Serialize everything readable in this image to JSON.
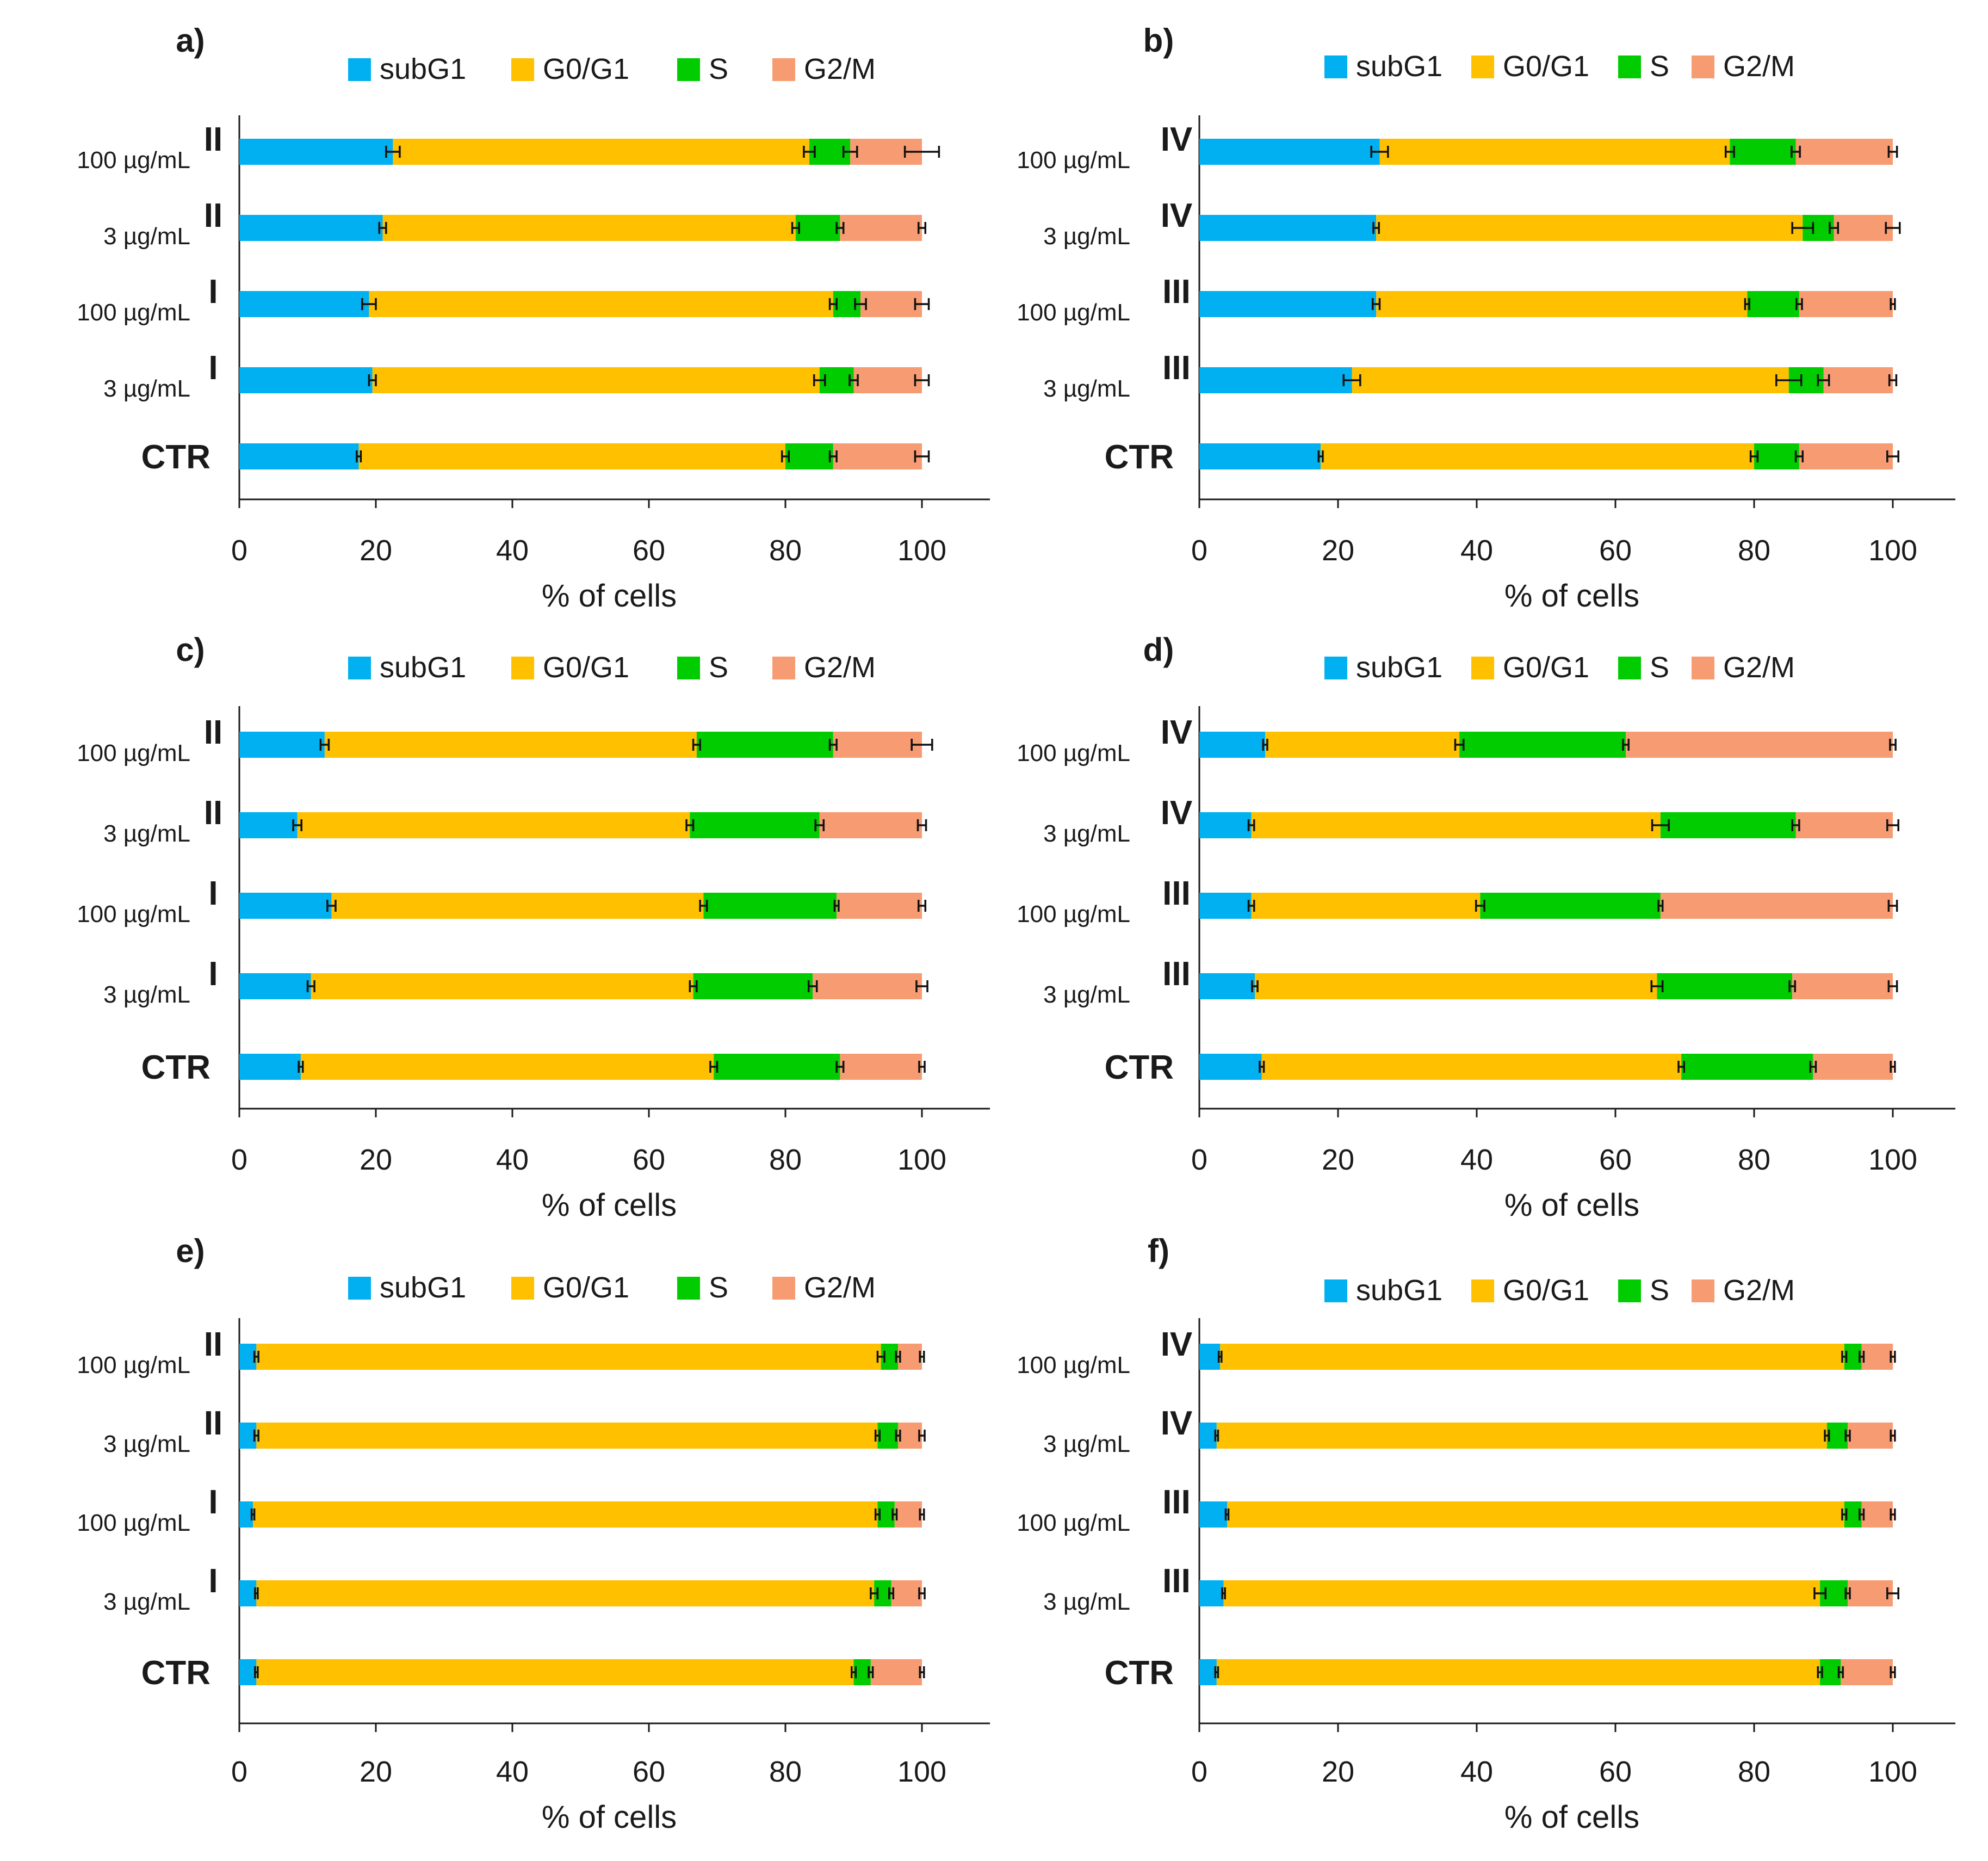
{
  "chart_data": [
    {
      "panel": "a)",
      "type": "bar",
      "orientation": "horizontal",
      "stacked": true,
      "legend": [
        "subG1",
        "G0/G1",
        "S",
        "G2/M"
      ],
      "rows": [
        {
          "conc": "100 µg/mL",
          "label": "II",
          "values": [
            22.5,
            61,
            6,
            10.5
          ],
          "errors": [
            1,
            0.8,
            1,
            2.5
          ]
        },
        {
          "conc": "3 µg/mL",
          "label": "II",
          "values": [
            21,
            60.5,
            6.5,
            12
          ],
          "errors": [
            0.5,
            0.5,
            0.5,
            0.5
          ]
        },
        {
          "conc": "100 µg/mL",
          "label": "I",
          "values": [
            19,
            68,
            4,
            9
          ],
          "errors": [
            1,
            0.5,
            0.8,
            1
          ]
        },
        {
          "conc": "3 µg/mL",
          "label": "I",
          "values": [
            19.5,
            65.5,
            5,
            10
          ],
          "errors": [
            0.5,
            0.8,
            0.6,
            1
          ]
        },
        {
          "conc": "",
          "label": "CTR",
          "values": [
            17.5,
            62.5,
            7,
            13
          ],
          "errors": [
            0.3,
            0.5,
            0.5,
            1
          ]
        }
      ],
      "xlim": [
        0,
        110
      ],
      "xticks": [
        "0",
        "20",
        "40",
        "60",
        "80",
        "100"
      ],
      "xlabel": "% of cells"
    },
    {
      "panel": "b)",
      "type": "bar",
      "orientation": "horizontal",
      "stacked": true,
      "legend": [
        "subG1",
        "G0/G1",
        "S",
        "G2/M"
      ],
      "rows": [
        {
          "conc": "100 µg/mL",
          "label": "IV",
          "values": [
            26,
            50.5,
            9.5,
            14
          ],
          "errors": [
            1.2,
            0.6,
            0.6,
            0.6
          ]
        },
        {
          "conc": "3 µg/mL",
          "label": "IV",
          "values": [
            25.5,
            61.5,
            4.5,
            8.5
          ],
          "errors": [
            0.4,
            1.5,
            0.6,
            1
          ]
        },
        {
          "conc": "100 µg/mL",
          "label": "III",
          "values": [
            25.5,
            53.5,
            7.5,
            13.5
          ],
          "errors": [
            0.5,
            0.3,
            0.4,
            0.3
          ]
        },
        {
          "conc": "3 µg/mL",
          "label": "III",
          "values": [
            22,
            63,
            5,
            10
          ],
          "errors": [
            1.2,
            1.8,
            0.8,
            0.5
          ]
        },
        {
          "conc": "",
          "label": "CTR",
          "values": [
            17.5,
            62.5,
            6.5,
            13.5
          ],
          "errors": [
            0.3,
            0.5,
            0.5,
            0.8
          ]
        }
      ],
      "xlim": [
        0,
        110
      ],
      "xticks": [
        "0",
        "20",
        "40",
        "60",
        "80",
        "100"
      ],
      "xlabel": "% of cells"
    },
    {
      "panel": "c)",
      "type": "bar",
      "orientation": "horizontal",
      "stacked": true,
      "legend": [
        "subG1",
        "G0/G1",
        "S",
        "G2/M"
      ],
      "rows": [
        {
          "conc": "100 µg/mL",
          "label": "II",
          "values": [
            12.5,
            54.5,
            20,
            13
          ],
          "errors": [
            0.6,
            0.5,
            0.5,
            1.5
          ]
        },
        {
          "conc": "3 µg/mL",
          "label": "II",
          "values": [
            8.5,
            57.5,
            19,
            15
          ],
          "errors": [
            0.6,
            0.5,
            0.6,
            0.6
          ]
        },
        {
          "conc": "100 µg/mL",
          "label": "I",
          "values": [
            13.5,
            54.5,
            19.5,
            12.5
          ],
          "errors": [
            0.6,
            0.5,
            0.3,
            0.5
          ]
        },
        {
          "conc": "3 µg/mL",
          "label": "I",
          "values": [
            10.5,
            56,
            17.5,
            16
          ],
          "errors": [
            0.5,
            0.5,
            0.6,
            0.8
          ]
        },
        {
          "conc": "",
          "label": "CTR",
          "values": [
            9,
            60.5,
            18.5,
            12
          ],
          "errors": [
            0.3,
            0.5,
            0.5,
            0.4
          ]
        }
      ],
      "xlim": [
        0,
        110
      ],
      "xticks": [
        "0",
        "20",
        "40",
        "60",
        "80",
        "100"
      ],
      "xlabel": "% of cells"
    },
    {
      "panel": "d)",
      "type": "bar",
      "orientation": "horizontal",
      "stacked": true,
      "legend": [
        "subG1",
        "G0/G1",
        "S",
        "G2/M"
      ],
      "rows": [
        {
          "conc": "100 µg/mL",
          "label": "IV",
          "values": [
            9.5,
            28,
            24,
            38.5
          ],
          "errors": [
            0.3,
            0.6,
            0.4,
            0.4
          ]
        },
        {
          "conc": "3 µg/mL",
          "label": "IV",
          "values": [
            7.5,
            59,
            19.5,
            14
          ],
          "errors": [
            0.4,
            1.2,
            0.5,
            0.8
          ]
        },
        {
          "conc": "100 µg/mL",
          "label": "III",
          "values": [
            7.5,
            33,
            26,
            33.5
          ],
          "errors": [
            0.4,
            0.6,
            0.3,
            0.6
          ]
        },
        {
          "conc": "3 µg/mL",
          "label": "III",
          "values": [
            8,
            58,
            19.5,
            14.5
          ],
          "errors": [
            0.4,
            0.8,
            0.4,
            0.6
          ]
        },
        {
          "conc": "",
          "label": "CTR",
          "values": [
            9,
            60.5,
            19,
            11.5
          ],
          "errors": [
            0.3,
            0.4,
            0.4,
            0.3
          ]
        }
      ],
      "xlim": [
        0,
        110
      ],
      "xticks": [
        "0",
        "20",
        "40",
        "60",
        "80",
        "100"
      ],
      "xlabel": "% of cells"
    },
    {
      "panel": "e)",
      "type": "bar",
      "orientation": "horizontal",
      "stacked": true,
      "legend": [
        "subG1",
        "G0/G1",
        "S",
        "G2/M"
      ],
      "rows": [
        {
          "conc": "100 µg/mL",
          "label": "II",
          "values": [
            2.5,
            91.5,
            2.5,
            3.5
          ],
          "errors": [
            0.3,
            0.5,
            0.3,
            0.3
          ]
        },
        {
          "conc": "3 µg/mL",
          "label": "II",
          "values": [
            2.5,
            91,
            3,
            3.5
          ],
          "errors": [
            0.3,
            0.3,
            0.3,
            0.4
          ]
        },
        {
          "conc": "100 µg/mL",
          "label": "I",
          "values": [
            2,
            91.5,
            2.5,
            4
          ],
          "errors": [
            0.2,
            0.3,
            0.3,
            0.3
          ]
        },
        {
          "conc": "3 µg/mL",
          "label": "I",
          "values": [
            2.5,
            90.5,
            2.5,
            4.5
          ],
          "errors": [
            0.2,
            0.5,
            0.3,
            0.4
          ]
        },
        {
          "conc": "",
          "label": "CTR",
          "values": [
            2.5,
            87.5,
            2.5,
            7.5
          ],
          "errors": [
            0.2,
            0.3,
            0.3,
            0.3
          ]
        }
      ],
      "xlim": [
        0,
        110
      ],
      "xticks": [
        "0",
        "20",
        "40",
        "60",
        "80",
        "100"
      ],
      "xlabel": "% of cells"
    },
    {
      "panel": "f)",
      "type": "bar",
      "orientation": "horizontal",
      "stacked": true,
      "legend": [
        "subG1",
        "G0/G1",
        "S",
        "G2/M"
      ],
      "rows": [
        {
          "conc": "100 µg/mL",
          "label": "IV",
          "values": [
            3,
            90,
            2.5,
            4.5
          ],
          "errors": [
            0.2,
            0.3,
            0.3,
            0.3
          ]
        },
        {
          "conc": "3 µg/mL",
          "label": "IV",
          "values": [
            2.5,
            88,
            3,
            6.5
          ],
          "errors": [
            0.2,
            0.3,
            0.3,
            0.3
          ]
        },
        {
          "conc": "100 µg/mL",
          "label": "III",
          "values": [
            4,
            89,
            2.5,
            4.5
          ],
          "errors": [
            0.2,
            0.3,
            0.3,
            0.3
          ]
        },
        {
          "conc": "3 µg/mL",
          "label": "III",
          "values": [
            3.5,
            86,
            4,
            6.5
          ],
          "errors": [
            0.2,
            0.8,
            0.3,
            0.8
          ]
        },
        {
          "conc": "",
          "label": "CTR",
          "values": [
            2.5,
            87,
            3,
            7.5
          ],
          "errors": [
            0.2,
            0.3,
            0.3,
            0.3
          ]
        }
      ],
      "xlim": [
        0,
        110
      ],
      "xticks": [
        "0",
        "20",
        "40",
        "60",
        "80",
        "100"
      ],
      "xlabel": "% of cells"
    }
  ],
  "colors": {
    "subG1": "#00B0F0",
    "G0/G1": "#FFC000",
    "S": "#00CC00",
    "G2/M": "#F79B72"
  }
}
